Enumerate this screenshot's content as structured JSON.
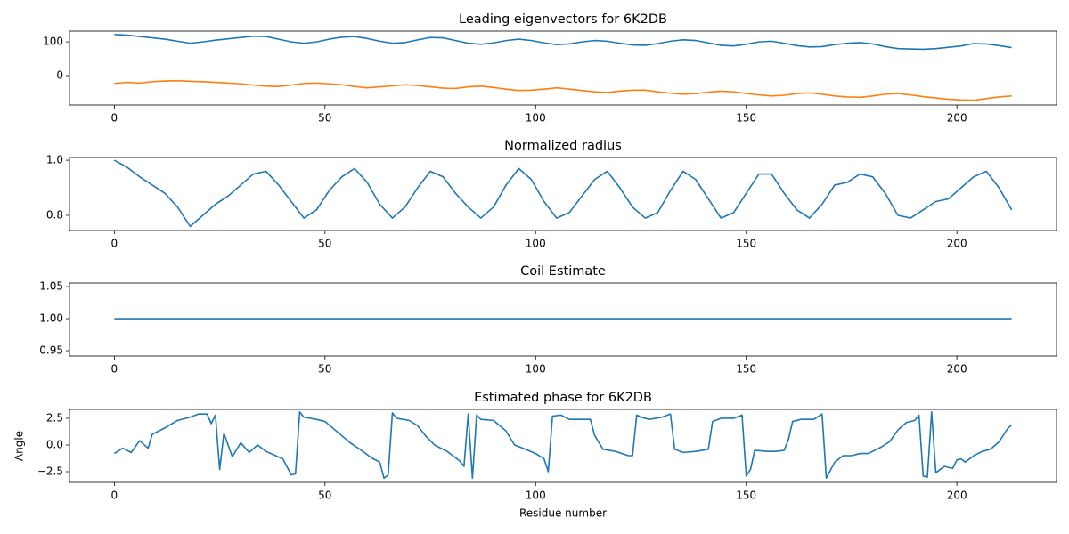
{
  "chart_data": [
    {
      "type": "line",
      "title": "Leading eigenvectors for 6K2DB",
      "x": [
        0,
        3,
        6,
        9,
        12,
        15,
        18,
        21,
        24,
        27,
        30,
        33,
        36,
        39,
        42,
        45,
        48,
        51,
        54,
        57,
        60,
        63,
        66,
        69,
        72,
        75,
        78,
        81,
        84,
        87,
        90,
        93,
        96,
        99,
        102,
        105,
        108,
        111,
        114,
        117,
        120,
        123,
        126,
        129,
        132,
        135,
        138,
        141,
        144,
        147,
        150,
        153,
        156,
        159,
        162,
        165,
        168,
        171,
        174,
        177,
        180,
        183,
        186,
        189,
        192,
        195,
        198,
        201,
        204,
        207,
        210,
        213
      ],
      "series": [
        {
          "color": "#1f77b4",
          "values": [
            122,
            120,
            116,
            112,
            108,
            102,
            96,
            100,
            105,
            109,
            113,
            117,
            116,
            108,
            100,
            96,
            100,
            108,
            114,
            116,
            110,
            102,
            96,
            98,
            106,
            113,
            112,
            104,
            96,
            93,
            97,
            104,
            108,
            104,
            97,
            92,
            94,
            100,
            104,
            102,
            96,
            91,
            90,
            95,
            102,
            106,
            104,
            97,
            90,
            88,
            93,
            100,
            102,
            96,
            89,
            85,
            86,
            92,
            96,
            98,
            94,
            86,
            80,
            79,
            78,
            80,
            84,
            88,
            95,
            94,
            89,
            83
          ]
        },
        {
          "color": "#ff7f0e",
          "values": [
            -23,
            -20,
            -22,
            -18,
            -16,
            -15,
            -17,
            -18,
            -20,
            -22,
            -24,
            -28,
            -31,
            -32,
            -28,
            -23,
            -22,
            -24,
            -27,
            -32,
            -36,
            -33,
            -30,
            -27,
            -29,
            -33,
            -37,
            -38,
            -33,
            -31,
            -35,
            -40,
            -44,
            -43,
            -40,
            -36,
            -40,
            -44,
            -48,
            -50,
            -46,
            -43,
            -43,
            -48,
            -52,
            -55,
            -53,
            -49,
            -46,
            -48,
            -53,
            -57,
            -60,
            -58,
            -53,
            -51,
            -55,
            -60,
            -63,
            -64,
            -60,
            -55,
            -53,
            -57,
            -62,
            -66,
            -70,
            -72,
            -73,
            -68,
            -63,
            -60
          ]
        }
      ],
      "xlim": [
        -10.65,
        223.65
      ],
      "xticks": [
        0,
        50,
        100,
        150,
        200
      ],
      "ylim": [
        -87,
        132
      ],
      "yticks": [
        0,
        100
      ]
    },
    {
      "type": "line",
      "title": "Normalized radius",
      "x": [
        0,
        3,
        6,
        9,
        12,
        15,
        18,
        21,
        24,
        27,
        30,
        33,
        36,
        39,
        42,
        45,
        48,
        51,
        54,
        57,
        60,
        63,
        66,
        69,
        72,
        75,
        78,
        81,
        84,
        87,
        90,
        93,
        96,
        99,
        102,
        105,
        108,
        111,
        114,
        117,
        120,
        123,
        126,
        129,
        132,
        135,
        138,
        141,
        144,
        147,
        150,
        153,
        156,
        159,
        162,
        165,
        168,
        171,
        174,
        177,
        180,
        183,
        186,
        189,
        192,
        195,
        198,
        201,
        204,
        207,
        210,
        213
      ],
      "values": [
        1.0,
        0.975,
        0.94,
        0.91,
        0.88,
        0.83,
        0.76,
        0.8,
        0.84,
        0.87,
        0.91,
        0.95,
        0.96,
        0.91,
        0.85,
        0.79,
        0.82,
        0.89,
        0.94,
        0.97,
        0.92,
        0.84,
        0.79,
        0.83,
        0.9,
        0.96,
        0.94,
        0.88,
        0.83,
        0.79,
        0.83,
        0.91,
        0.97,
        0.93,
        0.85,
        0.79,
        0.81,
        0.87,
        0.93,
        0.96,
        0.9,
        0.83,
        0.79,
        0.81,
        0.89,
        0.96,
        0.93,
        0.86,
        0.79,
        0.81,
        0.88,
        0.95,
        0.95,
        0.88,
        0.82,
        0.79,
        0.84,
        0.91,
        0.92,
        0.95,
        0.94,
        0.88,
        0.8,
        0.79,
        0.82,
        0.85,
        0.86,
        0.9,
        0.94,
        0.96,
        0.9,
        0.82
      ],
      "color": "#1f77b4",
      "xlim": [
        -10.65,
        223.65
      ],
      "xticks": [
        0,
        50,
        100,
        150,
        200
      ],
      "ylim": [
        0.745,
        1.01
      ],
      "yticks": [
        {
          "value": 0.8,
          "label": "0.8"
        },
        {
          "value": 1.0,
          "label": "1.0"
        }
      ]
    },
    {
      "type": "line",
      "title": "Coil Estimate",
      "x": [
        0,
        213
      ],
      "values": [
        1,
        1
      ],
      "color": "#1f77b4",
      "xlim": [
        -10.65,
        223.65
      ],
      "xticks": [
        0,
        50,
        100,
        150,
        200
      ],
      "ylim": [
        0.9417,
        1.0556
      ],
      "yticks": [
        {
          "value": 0.95,
          "label": "0.95"
        },
        {
          "value": 1.0,
          "label": "1.00"
        },
        {
          "value": 1.05,
          "label": "1.05"
        }
      ]
    },
    {
      "type": "line",
      "title": "Estimated phase for 6K2DB",
      "xlabel": "Residue number",
      "ylabel": "Angle",
      "x": [
        0,
        2,
        4,
        6,
        8,
        9,
        12,
        15,
        18,
        20,
        22,
        23,
        24,
        25,
        26,
        28,
        30,
        32,
        34,
        36,
        40,
        42,
        43,
        44,
        45,
        48,
        50,
        53,
        56,
        59,
        61,
        63,
        64,
        65,
        66,
        67,
        70,
        72,
        74,
        76,
        79,
        82,
        83,
        84,
        85,
        86,
        87,
        90,
        93,
        95,
        97,
        100,
        102,
        103,
        104,
        106,
        108,
        111,
        113,
        114,
        116,
        119,
        122,
        123,
        124,
        125,
        127,
        130,
        132,
        133,
        135,
        138,
        141,
        142,
        144,
        147,
        149,
        150,
        151,
        152,
        155,
        157,
        159,
        160,
        161,
        163,
        166,
        168,
        169,
        171,
        173,
        175,
        177,
        179,
        182,
        184,
        186,
        188,
        190,
        191,
        192,
        193,
        194,
        195,
        197,
        199,
        200,
        201,
        202,
        204,
        206,
        208,
        210,
        212,
        213
      ],
      "values": [
        -0.8,
        -0.3,
        -0.7,
        0.4,
        -0.3,
        1.0,
        1.6,
        2.3,
        2.6,
        2.9,
        2.9,
        2.0,
        2.8,
        -2.3,
        1.1,
        -1.1,
        0.2,
        -0.7,
        0.0,
        -0.6,
        -1.3,
        -2.8,
        -2.7,
        3.1,
        2.6,
        2.4,
        2.2,
        1.2,
        0.2,
        -0.6,
        -1.2,
        -1.6,
        -3.1,
        -2.8,
        3.0,
        2.5,
        2.3,
        1.8,
        0.8,
        0.0,
        -0.6,
        -1.5,
        -2.0,
        2.9,
        -3.1,
        2.8,
        2.4,
        2.3,
        1.3,
        0.0,
        -0.3,
        -0.8,
        -1.3,
        -2.5,
        2.7,
        2.8,
        2.4,
        2.4,
        2.4,
        0.9,
        -0.4,
        -0.6,
        -1.0,
        -1.0,
        2.8,
        2.6,
        2.4,
        2.6,
        2.9,
        -0.4,
        -0.7,
        -0.6,
        -0.4,
        2.2,
        2.5,
        2.5,
        2.8,
        -2.9,
        -2.3,
        -0.5,
        -0.6,
        -0.6,
        -0.5,
        0.5,
        2.2,
        2.4,
        2.4,
        2.9,
        -3.1,
        -1.6,
        -1.0,
        -1.0,
        -0.8,
        -0.8,
        -0.2,
        0.3,
        1.4,
        2.1,
        2.3,
        2.8,
        -2.9,
        -3.0,
        3.1,
        -2.6,
        -2.0,
        -2.2,
        -1.4,
        -1.3,
        -1.6,
        -1.0,
        -0.6,
        -0.4,
        0.3,
        1.5,
        1.9
      ],
      "color": "#1f77b4",
      "xlim": [
        -10.65,
        223.65
      ],
      "xticks": [
        0,
        50,
        100,
        150,
        200
      ],
      "ylim": [
        -3.5,
        3.33
      ],
      "yticks": [
        {
          "value": -2.5,
          "label": "−2.5"
        },
        {
          "value": 0.0,
          "label": "0.0"
        },
        {
          "value": 2.5,
          "label": "2.5"
        }
      ]
    }
  ]
}
